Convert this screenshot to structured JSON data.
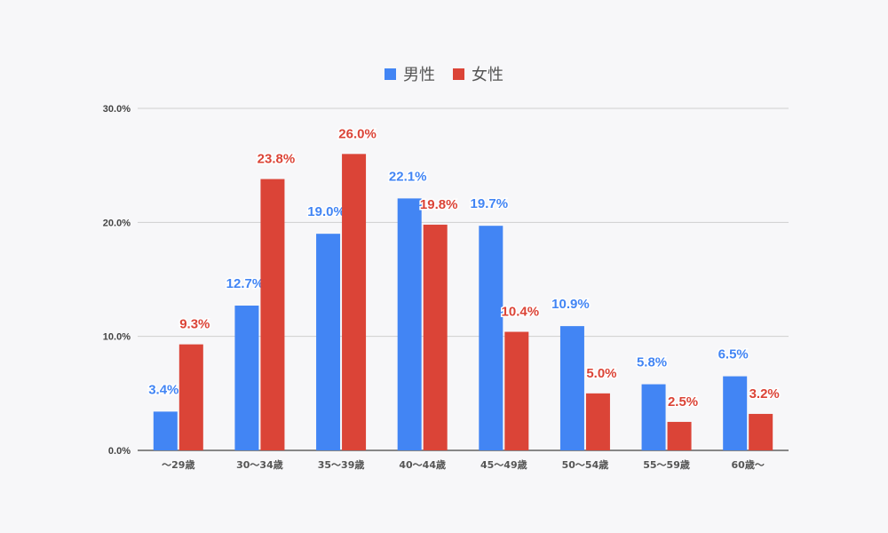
{
  "chart_data": {
    "type": "bar",
    "categories": [
      "～29歳",
      "30～34歳",
      "35～39歳",
      "40～44歳",
      "45～49歳",
      "50～54歳",
      "55～59歳",
      "60歳～"
    ],
    "series": [
      {
        "name": "男性",
        "color": "#4285f4",
        "values": [
          3.4,
          12.7,
          19.0,
          22.1,
          19.7,
          10.9,
          5.8,
          6.5
        ]
      },
      {
        "name": "女性",
        "color": "#db4437",
        "values": [
          9.3,
          23.8,
          26.0,
          19.8,
          10.4,
          5.0,
          2.5,
          3.2
        ]
      }
    ],
    "data_labels": [
      [
        "3.4%",
        "12.7%",
        "19.0%",
        "22.1%",
        "19.7%",
        "10.9%",
        "5.8%",
        "6.5%"
      ],
      [
        "9.3%",
        "23.8%",
        "26.0%",
        "19.8%",
        "10.4%",
        "5.0%",
        "2.5%",
        "3.2%"
      ]
    ],
    "yticks": [
      "0.0%",
      "10.0%",
      "20.0%",
      "30.0%"
    ],
    "ylim": [
      0,
      30
    ],
    "grid": true,
    "legend_position": "top-center"
  }
}
